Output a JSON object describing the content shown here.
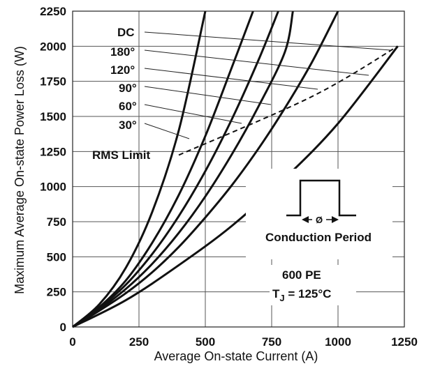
{
  "chart_data": {
    "type": "line",
    "title": "",
    "xlabel": "Average On-state Current (A)",
    "ylabel": "Maximum Average On-state Power Loss (W)",
    "xlim": [
      0,
      1250
    ],
    "ylim": [
      0,
      2250
    ],
    "x_ticks": [
      "0",
      "250",
      "500",
      "750",
      "1000",
      "1250"
    ],
    "y_ticks": [
      "0",
      "250",
      "500",
      "750",
      "1000",
      "1250",
      "1500",
      "1750",
      "2000",
      "2250"
    ],
    "grid": true,
    "series": [
      {
        "name": "30°",
        "x": [
          0,
          100,
          200,
          300,
          400,
          500
        ],
        "y": [
          0,
          160,
          420,
          820,
          1400,
          2250
        ]
      },
      {
        "name": "60°",
        "x": [
          0,
          100,
          200,
          300,
          400,
          500,
          600,
          680
        ],
        "y": [
          0,
          140,
          330,
          600,
          940,
          1360,
          1850,
          2250
        ]
      },
      {
        "name": "90°",
        "x": [
          0,
          100,
          200,
          300,
          400,
          500,
          600,
          700,
          775
        ],
        "y": [
          0,
          135,
          300,
          520,
          790,
          1110,
          1480,
          1900,
          2250
        ]
      },
      {
        "name": "120°",
        "x": [
          0,
          100,
          200,
          300,
          400,
          500,
          600,
          700,
          800,
          830
        ],
        "y": [
          0,
          125,
          270,
          450,
          670,
          930,
          1230,
          1570,
          1960,
          2250
        ]
      },
      {
        "name": "180°",
        "x": [
          0,
          100,
          200,
          300,
          400,
          500,
          600,
          700,
          800,
          900,
          1000
        ],
        "y": [
          0,
          115,
          240,
          390,
          570,
          780,
          1010,
          1270,
          1560,
          1880,
          2250
        ]
      },
      {
        "name": "DC",
        "x": [
          0,
          200,
          400,
          600,
          800,
          1000,
          1225
        ],
        "y": [
          0,
          190,
          440,
          720,
          1060,
          1450,
          2000
        ]
      }
    ],
    "rms_limit": {
      "label": "RMS Limit",
      "x": [
        400,
        900,
        1225
      ],
      "y": [
        1225,
        1640,
        2000
      ]
    },
    "annotations": {
      "curve_labels": [
        "DC",
        "180°",
        "120°",
        "90°",
        "60°",
        "30°"
      ],
      "waveform_label": "Conduction Period",
      "waveform_symbol": "Ø",
      "device": "600 PE",
      "temperature_prefix": "T",
      "temperature_sub": "J",
      "temperature_suffix": " = 125°C"
    }
  }
}
